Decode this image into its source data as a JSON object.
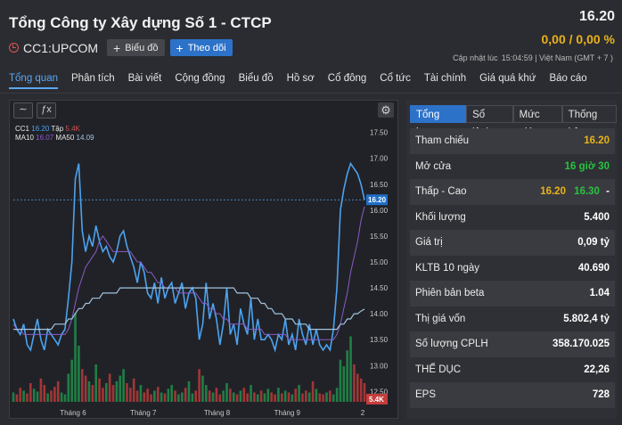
{
  "header": {
    "title": "Tổng Công ty Xây dựng Số 1 - CTCP",
    "ticker": "CC1:UPCOM",
    "chart_button": "Biểu đồ",
    "follow_button": "Theo dõi",
    "price": "16.20",
    "change": "0,00 / 0,00 %",
    "update_label": "Cập nhật lúc",
    "update_time": "15:04:59 | Việt Nam (GMT + 7 )"
  },
  "nav": [
    "Tổng quan",
    "Phân tích",
    "Bài viết",
    "Cộng đồng",
    "Biểu đồ",
    "Hồ sơ",
    "Cổ đông",
    "Cổ tức",
    "Tài chính",
    "Giá quá khứ",
    "Báo cáo"
  ],
  "chart_tools": {
    "line_icon": "∼",
    "fx_icon": "ƒx",
    "gear_icon": "⚙"
  },
  "legend": {
    "symbol": "CC1",
    "price": "16.20",
    "vol_label": "Tập",
    "vol": "5.4K",
    "ma10_label": "MA10",
    "ma10": "16.07",
    "ma50_label": "MA50",
    "ma50": "14.09"
  },
  "colors": {
    "price": "#4ba3f0",
    "ma10": "#8a5cc8",
    "ma50": "#a0c4e0",
    "volume": "#1f8f4c",
    "volume_down": "#b83a3a"
  },
  "chart_data": {
    "type": "line",
    "ylim": [
      12.3,
      17.7
    ],
    "y_ticks": [
      "17.50",
      "17.00",
      "16.50",
      "16.00",
      "15.50",
      "15.00",
      "14.50",
      "14.00",
      "13.50",
      "13.00",
      "12.50"
    ],
    "x_labels": [
      "Tháng 6",
      "Tháng 7",
      "Tháng 8",
      "Tháng 9",
      "2"
    ],
    "current_price_label": "16.20",
    "volume_label": "5.4K",
    "series": [
      {
        "name": "Giá",
        "values": [
          13.9,
          13.7,
          13.6,
          13.8,
          13.4,
          13.3,
          13.6,
          13.9,
          13.5,
          13.3,
          13.7,
          13.6,
          13.5,
          13.4,
          13.6,
          13.7,
          14.3,
          15.0,
          16.6,
          16.9,
          15.6,
          15.2,
          15.5,
          15.3,
          15.7,
          15.4,
          15.2,
          15.3,
          15.1,
          15.0,
          15.2,
          15.5,
          15.6,
          15.3,
          15.1,
          14.9,
          14.6,
          15.0,
          14.8,
          14.4,
          14.3,
          14.6,
          14.2,
          14.7,
          14.3,
          14.5,
          14.6,
          14.2,
          14.4,
          14.6,
          14.1,
          14.4,
          14.5,
          14.3,
          13.5,
          13.8,
          14.6,
          13.9,
          14.2,
          13.9,
          13.4,
          13.8,
          14.5,
          13.6,
          13.8,
          13.4,
          14.1,
          13.8,
          13.6,
          14.3,
          13.5,
          13.9,
          13.5,
          13.5,
          13.6,
          13.5,
          13.3,
          13.6,
          13.5,
          13.9,
          13.4,
          13.6,
          13.3,
          13.9,
          13.6,
          13.4,
          13.8,
          13.4,
          13.7,
          13.4,
          13.3,
          13.4,
          13.3,
          13.7,
          14.5,
          16.0,
          16.4,
          16.7,
          16.9,
          16.8,
          16.7,
          16.5,
          16.2
        ]
      },
      {
        "name": "MA10",
        "values": [
          13.8,
          13.7,
          13.7,
          13.6,
          13.6,
          13.6,
          13.6,
          13.6,
          13.6,
          13.6,
          13.6,
          13.6,
          13.6,
          13.6,
          13.6,
          13.6,
          13.7,
          13.9,
          14.2,
          14.5,
          14.7,
          14.9,
          15.0,
          15.1,
          15.2,
          15.4,
          15.5,
          15.4,
          15.3,
          15.2,
          15.2,
          15.2,
          15.2,
          15.2,
          15.2,
          15.1,
          15.0,
          15.0,
          14.9,
          14.8,
          14.8,
          14.7,
          14.6,
          14.6,
          14.5,
          14.5,
          14.5,
          14.5,
          14.4,
          14.4,
          14.4,
          14.4,
          14.4,
          14.4,
          14.3,
          14.2,
          14.2,
          14.1,
          14.1,
          14.0,
          14.0,
          13.9,
          13.9,
          13.8,
          13.8,
          13.8,
          13.8,
          13.8,
          13.7,
          13.7,
          13.7,
          13.7,
          13.7,
          13.6,
          13.6,
          13.6,
          13.6,
          13.6,
          13.6,
          13.6,
          13.5,
          13.5,
          13.5,
          13.5,
          13.5,
          13.5,
          13.5,
          13.5,
          13.5,
          13.5,
          13.5,
          13.5,
          13.5,
          13.5,
          13.6,
          13.8,
          14.1,
          14.4,
          14.8,
          15.1,
          15.4,
          15.8,
          16.07
        ]
      },
      {
        "name": "MA50",
        "values": [
          13.7,
          13.7,
          13.7,
          13.7,
          13.7,
          13.7,
          13.7,
          13.7,
          13.7,
          13.7,
          13.7,
          13.7,
          13.8,
          13.8,
          13.8,
          13.8,
          13.9,
          13.9,
          14.0,
          14.1,
          14.1,
          14.2,
          14.2,
          14.3,
          14.3,
          14.3,
          14.4,
          14.4,
          14.4,
          14.4,
          14.4,
          14.5,
          14.5,
          14.5,
          14.5,
          14.5,
          14.5,
          14.5,
          14.5,
          14.5,
          14.5,
          14.5,
          14.5,
          14.5,
          14.5,
          14.5,
          14.5,
          14.5,
          14.5,
          14.5,
          14.5,
          14.5,
          14.5,
          14.5,
          14.5,
          14.5,
          14.5,
          14.5,
          14.5,
          14.5,
          14.5,
          14.5,
          14.5,
          14.5,
          14.5,
          14.4,
          14.4,
          14.4,
          14.4,
          14.3,
          14.3,
          14.3,
          14.2,
          14.2,
          14.1,
          14.1,
          14.0,
          14.0,
          14.0,
          13.9,
          13.9,
          13.9,
          13.8,
          13.8,
          13.8,
          13.8,
          13.7,
          13.7,
          13.7,
          13.7,
          13.7,
          13.7,
          13.7,
          13.7,
          13.7,
          13.8,
          13.8,
          13.9,
          13.9,
          14.0,
          14.0,
          14.05,
          14.09
        ]
      }
    ],
    "volume": [
      10,
      8,
      15,
      12,
      9,
      20,
      14,
      11,
      25,
      18,
      9,
      12,
      16,
      22,
      10,
      8,
      30,
      45,
      95,
      60,
      35,
      28,
      22,
      18,
      40,
      25,
      15,
      20,
      30,
      18,
      22,
      28,
      35,
      20,
      15,
      25,
      12,
      18,
      10,
      14,
      8,
      12,
      16,
      10,
      9,
      14,
      18,
      12,
      8,
      10,
      15,
      22,
      9,
      12,
      35,
      28,
      18,
      12,
      10,
      15,
      8,
      12,
      20,
      14,
      10,
      8,
      12,
      15,
      9,
      18,
      10,
      8,
      12,
      9,
      14,
      10,
      8,
      15,
      9,
      12,
      10,
      8,
      14,
      18,
      9,
      12,
      10,
      22,
      14,
      9,
      8,
      10,
      12,
      8,
      15,
      45,
      38,
      55,
      70,
      40,
      30,
      25,
      20
    ],
    "volume_ylim": [
      0,
      100
    ]
  },
  "stats_tabs": [
    "Tổng hợp",
    "Sổ lệnh",
    "Mức giá",
    "Thống kê"
  ],
  "stats": [
    {
      "label": "Tham chiếu",
      "value": "16.20",
      "color": "yellow"
    },
    {
      "label": "Mở cửa",
      "value": "16 giờ 30",
      "color": "green"
    },
    {
      "label": "Thấp - Cao",
      "value": "16.20",
      "value2": "16.30",
      "tail": "-",
      "color": "yellow"
    },
    {
      "label": "Khối lượng",
      "value": "5.400"
    },
    {
      "label": "Giá trị",
      "value": "0,09 tỷ"
    },
    {
      "label": "KLTB 10 ngày",
      "value": "40.690"
    },
    {
      "label": "Phiên bản beta",
      "value": "1.04"
    },
    {
      "label": "Thị giá vốn",
      "value": "5.802,4 tỷ"
    },
    {
      "label": "Số lượng CPLH",
      "value": "358.170.025"
    },
    {
      "label": "THỂ DỤC",
      "value": "22,26"
    },
    {
      "label": "EPS",
      "value": "728"
    }
  ]
}
